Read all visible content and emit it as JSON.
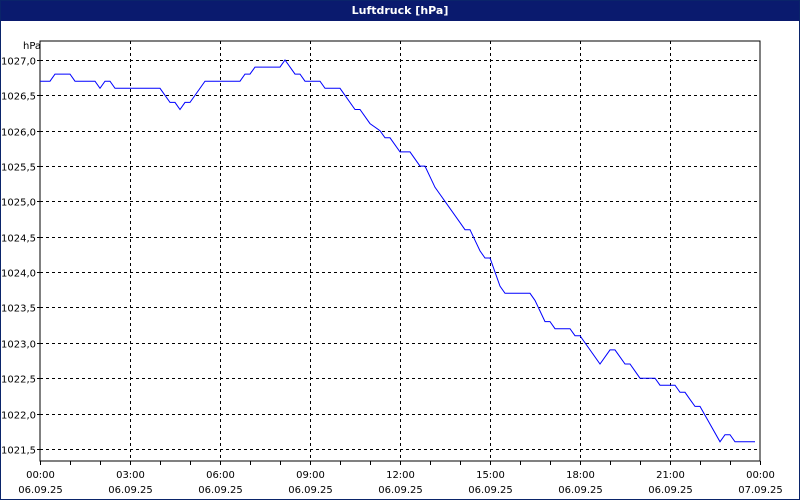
{
  "chart_data": {
    "type": "line",
    "title": "Luftdruck [hPa]",
    "ylabel": "hPa",
    "ylim": [
      1021.5,
      1027.0
    ],
    "yticks": [
      "1021,5",
      "1022,0",
      "1022,5",
      "1023,0",
      "1023,5",
      "1024,0",
      "1024,5",
      "1025,0",
      "1025,5",
      "1026,0",
      "1026,5",
      "1027,0"
    ],
    "xticks": [
      {
        "time": "00:00",
        "date": "06.09.25"
      },
      {
        "time": "03:00",
        "date": "06.09.25"
      },
      {
        "time": "06:00",
        "date": "06.09.25"
      },
      {
        "time": "09:00",
        "date": "06.09.25"
      },
      {
        "time": "12:00",
        "date": "06.09.25"
      },
      {
        "time": "15:00",
        "date": "06.09.25"
      },
      {
        "time": "18:00",
        "date": "06.09.25"
      },
      {
        "time": "21:00",
        "date": "06.09.25"
      },
      {
        "time": "00:00",
        "date": "07.09.25"
      }
    ],
    "grid": true,
    "color": "#0000ff",
    "series": [
      {
        "x": [
          "00:00",
          "00:20",
          "00:30",
          "01:00",
          "01:10",
          "01:50",
          "02:00",
          "02:10",
          "02:20",
          "02:30",
          "04:00",
          "04:20",
          "04:30",
          "04:40",
          "04:50",
          "05:00",
          "05:30",
          "06:40",
          "06:50",
          "07:00",
          "07:10",
          "08:00",
          "08:10",
          "08:30",
          "08:40",
          "08:50",
          "09:20",
          "09:30",
          "10:00",
          "10:30",
          "10:40",
          "11:00",
          "11:20",
          "11:30",
          "11:40",
          "12:00",
          "12:20",
          "12:40",
          "12:50",
          "13:10",
          "14:00",
          "14:10",
          "14:20",
          "14:40",
          "14:50",
          "15:00",
          "15:20",
          "15:30",
          "16:20",
          "16:30",
          "16:50",
          "17:00",
          "17:10",
          "17:40",
          "17:50",
          "18:00",
          "18:40",
          "19:00",
          "19:10",
          "19:20",
          "19:30",
          "19:40",
          "19:50",
          "20:00",
          "20:30",
          "20:40",
          "21:10",
          "21:20",
          "21:30",
          "21:40",
          "21:50",
          "22:00",
          "22:40",
          "22:50",
          "23:00",
          "23:10",
          "23:50"
        ],
        "y": [
          1026.7,
          1026.7,
          1026.8,
          1026.8,
          1026.7,
          1026.7,
          1026.6,
          1026.7,
          1026.7,
          1026.6,
          1026.6,
          1026.4,
          1026.4,
          1026.3,
          1026.4,
          1026.4,
          1026.7,
          1026.7,
          1026.8,
          1026.8,
          1026.9,
          1026.9,
          1027.0,
          1026.8,
          1026.8,
          1026.7,
          1026.7,
          1026.6,
          1026.6,
          1026.3,
          1026.3,
          1026.1,
          1026.0,
          1025.9,
          1025.9,
          1025.7,
          1025.7,
          1025.5,
          1025.5,
          1025.2,
          1024.7,
          1024.6,
          1024.6,
          1024.3,
          1024.2,
          1024.2,
          1023.8,
          1023.7,
          1023.7,
          1023.6,
          1023.3,
          1023.3,
          1023.2,
          1023.2,
          1023.1,
          1023.1,
          1022.7,
          1022.9,
          1022.9,
          1022.8,
          1022.7,
          1022.7,
          1022.6,
          1022.5,
          1022.5,
          1022.4,
          1022.4,
          1022.3,
          1022.3,
          1022.2,
          1022.1,
          1022.1,
          1021.6,
          1021.7,
          1021.7,
          1021.6,
          1021.6
        ]
      }
    ]
  }
}
